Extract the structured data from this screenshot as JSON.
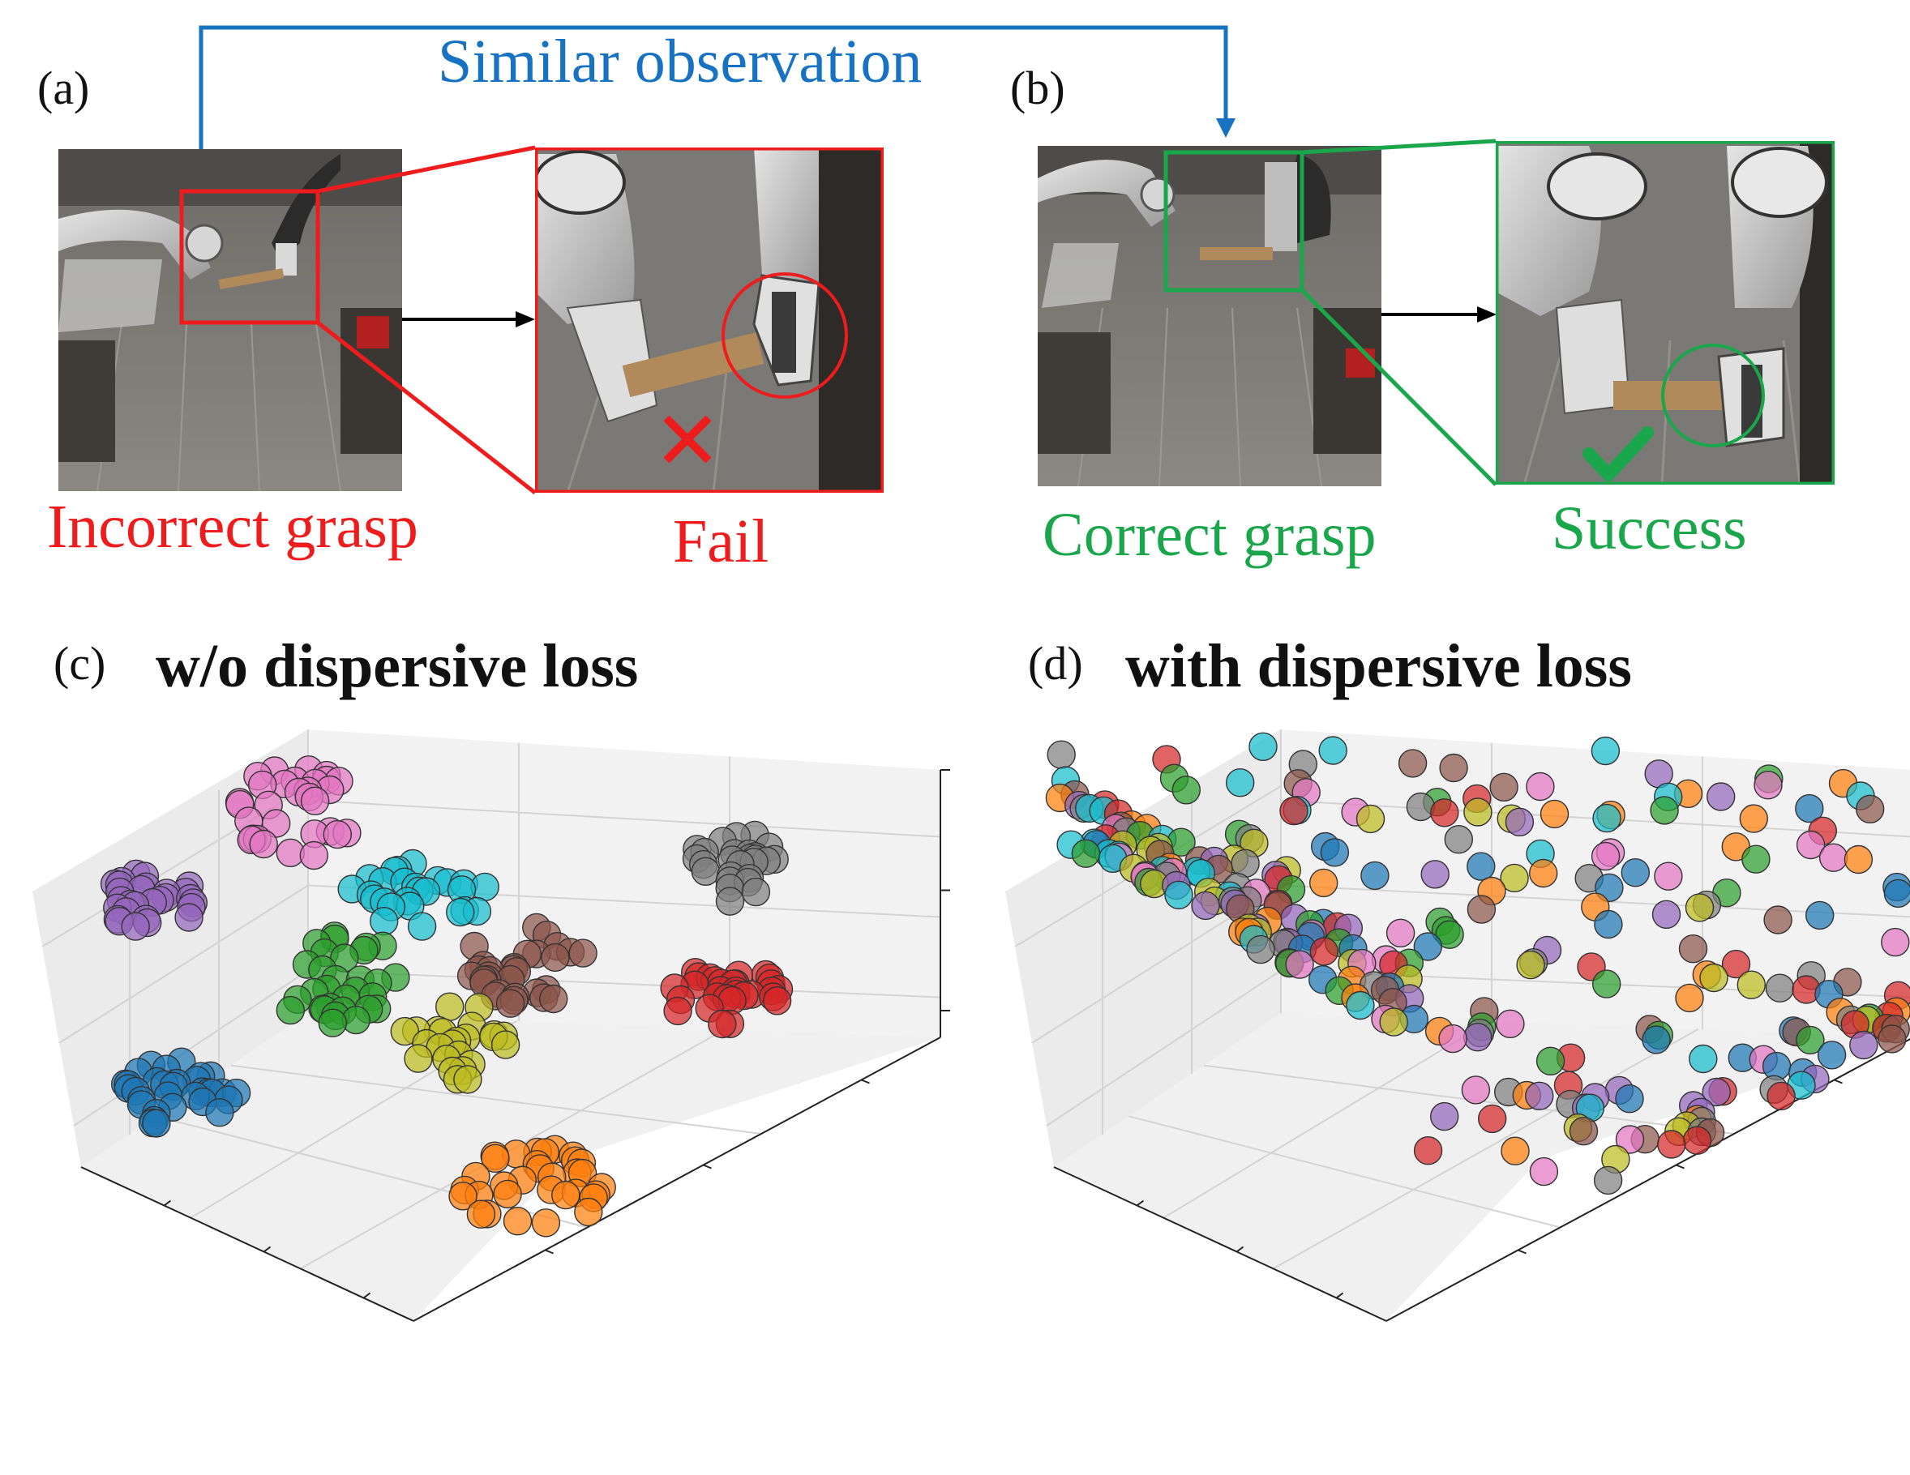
{
  "panels": {
    "a": {
      "letter": "(a)",
      "caption": "Incorrect grasp",
      "zoom_caption": "Fail",
      "mark": "cross-icon"
    },
    "b": {
      "letter": "(b)",
      "caption": "Correct grasp",
      "zoom_caption": "Success",
      "mark": "check-icon"
    },
    "c": {
      "letter": "(c)",
      "title": "w/o dispersive loss"
    },
    "d": {
      "letter": "(d)",
      "title": "with dispersive loss"
    }
  },
  "connector": {
    "label": "Similar observation"
  },
  "colors": {
    "fail": "#ee1c1c",
    "success": "#1aa64b",
    "connector": "#1872c2",
    "blue": "#1f77b4",
    "orange": "#ff7f0e",
    "green": "#2ca02c",
    "red": "#d62728",
    "purple": "#9467bd",
    "brown": "#8c564b",
    "pink": "#e377c2",
    "gray": "#7f7f7f",
    "olive": "#bcbd22",
    "cyan": "#17becf"
  },
  "chart_data": [
    {
      "type": "scatter",
      "title": "w/o dispersive loss",
      "dimensions": 3,
      "grid": true,
      "tick_labels": false,
      "distribution": "clustered",
      "series": [
        {
          "color": "#9467bd",
          "count": 28
        },
        {
          "color": "#e377c2",
          "count": 30
        },
        {
          "color": "#17becf",
          "count": 26
        },
        {
          "color": "#2ca02c",
          "count": 30
        },
        {
          "color": "#7f7f7f",
          "count": 26
        },
        {
          "color": "#8c564b",
          "count": 30
        },
        {
          "color": "#d62728",
          "count": 30
        },
        {
          "color": "#bcbd22",
          "count": 24
        },
        {
          "color": "#1f77b4",
          "count": 32
        },
        {
          "color": "#ff7f0e",
          "count": 32
        }
      ]
    },
    {
      "type": "scatter",
      "title": "with dispersive loss",
      "dimensions": 3,
      "grid": true,
      "tick_labels": false,
      "distribution": "uniformly dispersed",
      "series": [
        {
          "color": "#9467bd",
          "count": 28
        },
        {
          "color": "#e377c2",
          "count": 28
        },
        {
          "color": "#17becf",
          "count": 28
        },
        {
          "color": "#2ca02c",
          "count": 28
        },
        {
          "color": "#7f7f7f",
          "count": 28
        },
        {
          "color": "#8c564b",
          "count": 28
        },
        {
          "color": "#d62728",
          "count": 28
        },
        {
          "color": "#bcbd22",
          "count": 28
        },
        {
          "color": "#1f77b4",
          "count": 28
        },
        {
          "color": "#ff7f0e",
          "count": 28
        }
      ]
    }
  ]
}
